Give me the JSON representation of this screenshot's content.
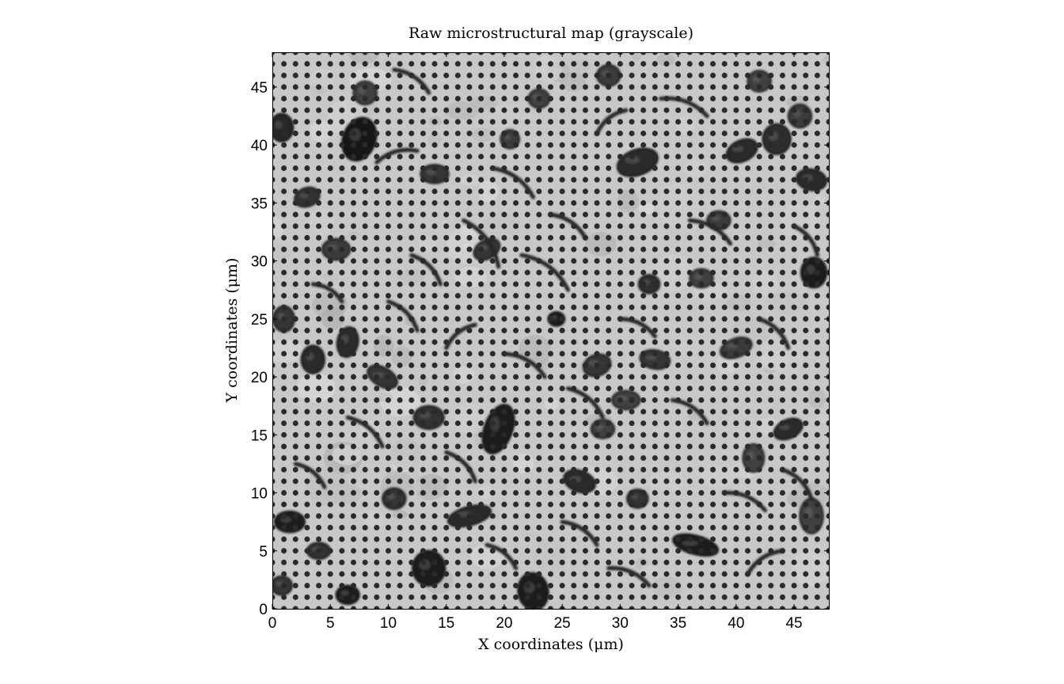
{
  "chart_data": {
    "type": "heatmap",
    "title": "Raw microstructural map (grayscale)",
    "xlabel": "X coordinates (μm)",
    "ylabel": "Y coordinates (μm)",
    "xlim": [
      0,
      48
    ],
    "ylim": [
      0,
      48
    ],
    "xticks": [
      0,
      5,
      10,
      15,
      20,
      25,
      30,
      35,
      40,
      45
    ],
    "yticks": [
      0,
      5,
      10,
      15,
      20,
      25,
      30,
      35,
      40,
      45
    ],
    "colormap": "gray",
    "grid": false,
    "regular_dot_pattern_spacing": 1,
    "background_gray": "#c8c8c8",
    "dot_color": "#2a2a2a",
    "particles": [
      {
        "x": 7.5,
        "y": 40.5,
        "rx": 1.4,
        "ry": 1.9,
        "rot": 20,
        "shade": "#151515"
      },
      {
        "x": 31.5,
        "y": 38.5,
        "rx": 1.8,
        "ry": 1.1,
        "rot": -20,
        "shade": "#2a2a2a"
      },
      {
        "x": 40.5,
        "y": 39.5,
        "rx": 1.4,
        "ry": 0.9,
        "rot": -25,
        "shade": "#2a2a2a"
      },
      {
        "x": 43.5,
        "y": 40.5,
        "rx": 1.2,
        "ry": 1.3,
        "rot": 0,
        "shade": "#2f2f2f"
      },
      {
        "x": 45.5,
        "y": 42.5,
        "rx": 1.0,
        "ry": 1.0,
        "rot": 0,
        "shade": "#3a3a3a"
      },
      {
        "x": 46.5,
        "y": 37.0,
        "rx": 1.3,
        "ry": 0.9,
        "rot": 10,
        "shade": "#2a2a2a"
      },
      {
        "x": 0.8,
        "y": 41.5,
        "rx": 1.0,
        "ry": 1.2,
        "rot": 0,
        "shade": "#262626"
      },
      {
        "x": 3.0,
        "y": 35.5,
        "rx": 1.1,
        "ry": 0.8,
        "rot": -20,
        "shade": "#303030"
      },
      {
        "x": 29.0,
        "y": 46.0,
        "rx": 1.0,
        "ry": 0.9,
        "rot": 0,
        "shade": "#3a3a3a"
      },
      {
        "x": 46.7,
        "y": 29.0,
        "rx": 1.1,
        "ry": 1.3,
        "rot": 0,
        "shade": "#1e1e1e"
      },
      {
        "x": 32.5,
        "y": 28.0,
        "rx": 0.9,
        "ry": 0.8,
        "rot": 0,
        "shade": "#2f2f2f"
      },
      {
        "x": 6.5,
        "y": 23.0,
        "rx": 0.9,
        "ry": 1.3,
        "rot": 10,
        "shade": "#2a2a2a"
      },
      {
        "x": 3.5,
        "y": 21.5,
        "rx": 1.0,
        "ry": 1.2,
        "rot": 0,
        "shade": "#2a2a2a"
      },
      {
        "x": 19.5,
        "y": 15.5,
        "rx": 1.2,
        "ry": 2.2,
        "rot": 20,
        "shade": "#1a1a1a"
      },
      {
        "x": 13.5,
        "y": 3.5,
        "rx": 1.4,
        "ry": 1.5,
        "rot": 0,
        "shade": "#1e1e1e"
      },
      {
        "x": 22.5,
        "y": 1.5,
        "rx": 1.3,
        "ry": 1.6,
        "rot": -10,
        "shade": "#1e1e1e"
      },
      {
        "x": 6.5,
        "y": 1.2,
        "rx": 1.0,
        "ry": 0.8,
        "rot": 0,
        "shade": "#1e1e1e"
      },
      {
        "x": 36.5,
        "y": 5.5,
        "rx": 2.0,
        "ry": 0.8,
        "rot": 15,
        "shade": "#1e1e1e"
      },
      {
        "x": 17.0,
        "y": 8.0,
        "rx": 1.9,
        "ry": 0.8,
        "rot": -15,
        "shade": "#2a2a2a"
      },
      {
        "x": 1.5,
        "y": 7.5,
        "rx": 1.3,
        "ry": 0.9,
        "rot": 0,
        "shade": "#1e1e1e"
      },
      {
        "x": 13.5,
        "y": 16.5,
        "rx": 1.3,
        "ry": 1.0,
        "rot": 0,
        "shade": "#303030"
      },
      {
        "x": 26.5,
        "y": 11.0,
        "rx": 1.4,
        "ry": 0.9,
        "rot": 20,
        "shade": "#2a2a2a"
      },
      {
        "x": 44.5,
        "y": 15.5,
        "rx": 1.3,
        "ry": 0.8,
        "rot": -25,
        "shade": "#2a2a2a"
      },
      {
        "x": 42.0,
        "y": 45.5,
        "rx": 1.0,
        "ry": 0.9,
        "rot": 0,
        "shade": "#404040"
      },
      {
        "x": 28.0,
        "y": 21.0,
        "rx": 1.2,
        "ry": 0.9,
        "rot": -20,
        "shade": "#353535"
      },
      {
        "x": 33.0,
        "y": 21.5,
        "rx": 1.3,
        "ry": 0.8,
        "rot": 10,
        "shade": "#353535"
      },
      {
        "x": 9.5,
        "y": 20.0,
        "rx": 1.4,
        "ry": 0.8,
        "rot": 30,
        "shade": "#353535"
      },
      {
        "x": 5.5,
        "y": 31.0,
        "rx": 1.2,
        "ry": 0.9,
        "rot": 0,
        "shade": "#3a3a3a"
      },
      {
        "x": 14.0,
        "y": 37.5,
        "rx": 1.2,
        "ry": 0.8,
        "rot": 0,
        "shade": "#353535"
      },
      {
        "x": 18.5,
        "y": 31.0,
        "rx": 1.2,
        "ry": 0.8,
        "rot": -30,
        "shade": "#353535"
      },
      {
        "x": 20.5,
        "y": 40.5,
        "rx": 0.8,
        "ry": 0.8,
        "rot": 0,
        "shade": "#3a3a3a"
      },
      {
        "x": 38.5,
        "y": 33.5,
        "rx": 1.0,
        "ry": 0.8,
        "rot": 0,
        "shade": "#3a3a3a"
      },
      {
        "x": 24.5,
        "y": 25.0,
        "rx": 0.7,
        "ry": 0.6,
        "rot": 0,
        "shade": "#1e1e1e"
      },
      {
        "x": 40.0,
        "y": 22.5,
        "rx": 1.4,
        "ry": 0.8,
        "rot": -20,
        "shade": "#3a3a3a"
      },
      {
        "x": 30.5,
        "y": 18.0,
        "rx": 1.2,
        "ry": 0.8,
        "rot": 0,
        "shade": "#404040"
      },
      {
        "x": 10.5,
        "y": 9.5,
        "rx": 1.0,
        "ry": 0.9,
        "rot": 0,
        "shade": "#353535"
      },
      {
        "x": 31.5,
        "y": 9.5,
        "rx": 0.9,
        "ry": 0.8,
        "rot": 0,
        "shade": "#303030"
      },
      {
        "x": 4.0,
        "y": 5.0,
        "rx": 1.0,
        "ry": 0.7,
        "rot": 0,
        "shade": "#303030"
      },
      {
        "x": 41.5,
        "y": 13.0,
        "rx": 0.9,
        "ry": 1.2,
        "rot": 0,
        "shade": "#404040"
      },
      {
        "x": 37.0,
        "y": 28.5,
        "rx": 1.0,
        "ry": 0.8,
        "rot": 0,
        "shade": "#404040"
      },
      {
        "x": 1.0,
        "y": 25.0,
        "rx": 0.9,
        "ry": 1.1,
        "rot": 0,
        "shade": "#353535"
      },
      {
        "x": 0.8,
        "y": 2.0,
        "rx": 0.9,
        "ry": 0.8,
        "rot": 0,
        "shade": "#353535"
      },
      {
        "x": 46.5,
        "y": 8.0,
        "rx": 1.0,
        "ry": 1.5,
        "rot": 0,
        "shade": "#404040"
      },
      {
        "x": 8.0,
        "y": 44.5,
        "rx": 1.0,
        "ry": 1.0,
        "rot": 0,
        "shade": "#404040"
      },
      {
        "x": 23.0,
        "y": 44.0,
        "rx": 0.9,
        "ry": 0.8,
        "rot": 0,
        "shade": "#404040"
      },
      {
        "x": 28.5,
        "y": 15.5,
        "rx": 1.0,
        "ry": 0.8,
        "rot": 0,
        "shade": "#404040"
      }
    ],
    "fibers": [
      {
        "x1": 9.0,
        "y1": 38.5,
        "x2": 12.5,
        "y2": 39.5,
        "w": 0.35
      },
      {
        "x1": 10.5,
        "y1": 46.5,
        "x2": 13.5,
        "y2": 44.5,
        "w": 0.35
      },
      {
        "x1": 19.0,
        "y1": 38.0,
        "x2": 22.5,
        "y2": 35.5,
        "w": 0.35
      },
      {
        "x1": 24.0,
        "y1": 34.0,
        "x2": 27.0,
        "y2": 32.0,
        "w": 0.35
      },
      {
        "x1": 16.5,
        "y1": 33.5,
        "x2": 19.5,
        "y2": 29.5,
        "w": 0.35
      },
      {
        "x1": 21.5,
        "y1": 30.5,
        "x2": 25.5,
        "y2": 27.5,
        "w": 0.35
      },
      {
        "x1": 33.5,
        "y1": 44.0,
        "x2": 37.5,
        "y2": 42.5,
        "w": 0.35
      },
      {
        "x1": 36.0,
        "y1": 33.5,
        "x2": 39.5,
        "y2": 31.5,
        "w": 0.35
      },
      {
        "x1": 10.0,
        "y1": 26.5,
        "x2": 12.5,
        "y2": 24.0,
        "w": 0.35
      },
      {
        "x1": 20.0,
        "y1": 22.0,
        "x2": 23.5,
        "y2": 20.0,
        "w": 0.35
      },
      {
        "x1": 25.5,
        "y1": 19.0,
        "x2": 28.5,
        "y2": 16.5,
        "w": 0.35
      },
      {
        "x1": 34.5,
        "y1": 18.0,
        "x2": 37.5,
        "y2": 16.0,
        "w": 0.35
      },
      {
        "x1": 15.0,
        "y1": 13.5,
        "x2": 17.5,
        "y2": 11.0,
        "w": 0.35
      },
      {
        "x1": 6.5,
        "y1": 16.5,
        "x2": 9.5,
        "y2": 14.0,
        "w": 0.35
      },
      {
        "x1": 39.0,
        "y1": 10.0,
        "x2": 42.5,
        "y2": 8.5,
        "w": 0.35
      },
      {
        "x1": 44.0,
        "y1": 12.0,
        "x2": 46.5,
        "y2": 9.5,
        "w": 0.35
      },
      {
        "x1": 25.0,
        "y1": 7.5,
        "x2": 28.0,
        "y2": 5.5,
        "w": 0.35
      },
      {
        "x1": 18.5,
        "y1": 5.5,
        "x2": 21.0,
        "y2": 3.5,
        "w": 0.35
      },
      {
        "x1": 29.0,
        "y1": 3.5,
        "x2": 32.5,
        "y2": 2.0,
        "w": 0.35
      },
      {
        "x1": 41.0,
        "y1": 3.0,
        "x2": 44.0,
        "y2": 5.0,
        "w": 0.35
      },
      {
        "x1": 2.0,
        "y1": 12.5,
        "x2": 4.5,
        "y2": 10.5,
        "w": 0.35
      },
      {
        "x1": 12.0,
        "y1": 30.5,
        "x2": 14.5,
        "y2": 28.0,
        "w": 0.35
      },
      {
        "x1": 28.0,
        "y1": 41.0,
        "x2": 30.5,
        "y2": 43.0,
        "w": 0.35
      },
      {
        "x1": 42.0,
        "y1": 25.0,
        "x2": 44.5,
        "y2": 22.5,
        "w": 0.35
      },
      {
        "x1": 45.0,
        "y1": 33.0,
        "x2": 47.0,
        "y2": 30.5,
        "w": 0.35
      },
      {
        "x1": 3.5,
        "y1": 28.0,
        "x2": 6.0,
        "y2": 26.5,
        "w": 0.35
      },
      {
        "x1": 30.0,
        "y1": 25.0,
        "x2": 33.0,
        "y2": 23.5,
        "w": 0.35
      },
      {
        "x1": 15.0,
        "y1": 22.5,
        "x2": 17.5,
        "y2": 24.5,
        "w": 0.35
      }
    ]
  }
}
